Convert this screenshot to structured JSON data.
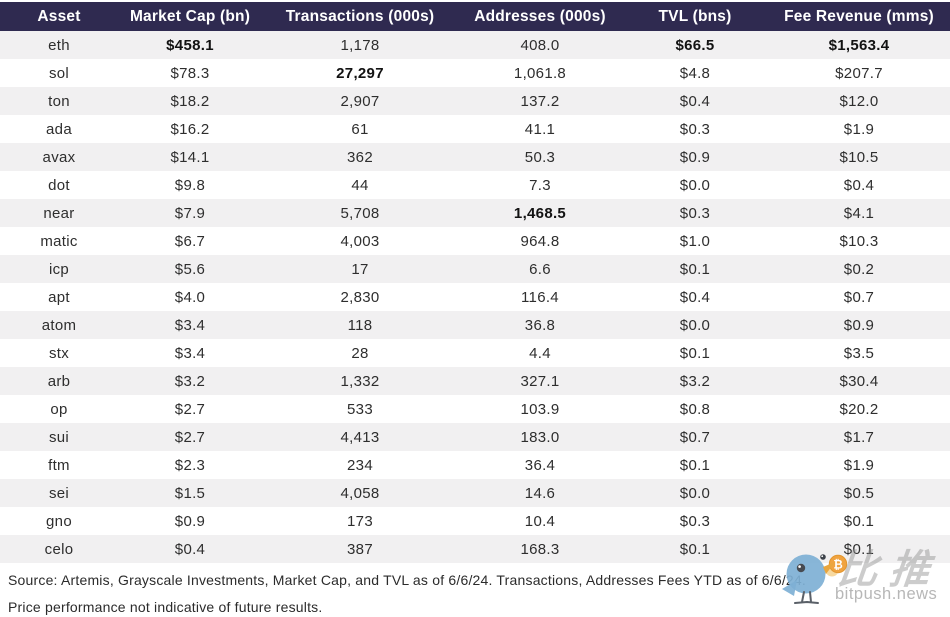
{
  "chart_data": {
    "type": "table",
    "title": "",
    "columns": [
      "Asset",
      "Market Cap (bn)",
      "Transactions (000s)",
      "Addresses (000s)",
      "TVL (bns)",
      "Fee Revenue (mms)"
    ],
    "rows": [
      {
        "cells": [
          "eth",
          "$458.1",
          "1,178",
          "408.0",
          "$66.5",
          "$1,563.4"
        ],
        "bold_cols": [
          1,
          4,
          5
        ]
      },
      {
        "cells": [
          "sol",
          "$78.3",
          "27,297",
          "1,061.8",
          "$4.8",
          "$207.7"
        ],
        "bold_cols": [
          2
        ]
      },
      {
        "cells": [
          "ton",
          "$18.2",
          "2,907",
          "137.2",
          "$0.4",
          "$12.0"
        ],
        "bold_cols": []
      },
      {
        "cells": [
          "ada",
          "$16.2",
          "61",
          "41.1",
          "$0.3",
          "$1.9"
        ],
        "bold_cols": []
      },
      {
        "cells": [
          "avax",
          "$14.1",
          "362",
          "50.3",
          "$0.9",
          "$10.5"
        ],
        "bold_cols": []
      },
      {
        "cells": [
          "dot",
          "$9.8",
          "44",
          "7.3",
          "$0.0",
          "$0.4"
        ],
        "bold_cols": []
      },
      {
        "cells": [
          "near",
          "$7.9",
          "5,708",
          "1,468.5",
          "$0.3",
          "$4.1"
        ],
        "bold_cols": [
          3
        ]
      },
      {
        "cells": [
          "matic",
          "$6.7",
          "4,003",
          "964.8",
          "$1.0",
          "$10.3"
        ],
        "bold_cols": []
      },
      {
        "cells": [
          "icp",
          "$5.6",
          "17",
          "6.6",
          "$0.1",
          "$0.2"
        ],
        "bold_cols": []
      },
      {
        "cells": [
          "apt",
          "$4.0",
          "2,830",
          "116.4",
          "$0.4",
          "$0.7"
        ],
        "bold_cols": []
      },
      {
        "cells": [
          "atom",
          "$3.4",
          "118",
          "36.8",
          "$0.0",
          "$0.9"
        ],
        "bold_cols": []
      },
      {
        "cells": [
          "stx",
          "$3.4",
          "28",
          "4.4",
          "$0.1",
          "$3.5"
        ],
        "bold_cols": []
      },
      {
        "cells": [
          "arb",
          "$3.2",
          "1,332",
          "327.1",
          "$3.2",
          "$30.4"
        ],
        "bold_cols": []
      },
      {
        "cells": [
          "op",
          "$2.7",
          "533",
          "103.9",
          "$0.8",
          "$20.2"
        ],
        "bold_cols": []
      },
      {
        "cells": [
          "sui",
          "$2.7",
          "4,413",
          "183.0",
          "$0.7",
          "$1.7"
        ],
        "bold_cols": []
      },
      {
        "cells": [
          "ftm",
          "$2.3",
          "234",
          "36.4",
          "$0.1",
          "$1.9"
        ],
        "bold_cols": []
      },
      {
        "cells": [
          "sei",
          "$1.5",
          "4,058",
          "14.6",
          "$0.0",
          "$0.5"
        ],
        "bold_cols": []
      },
      {
        "cells": [
          "gno",
          "$0.9",
          "173",
          "10.4",
          "$0.3",
          "$0.1"
        ],
        "bold_cols": []
      },
      {
        "cells": [
          "celo",
          "$0.4",
          "387",
          "168.3",
          "$0.1",
          "$0.1"
        ],
        "bold_cols": []
      }
    ]
  },
  "footer": {
    "line1": "Source: Artemis, Grayscale Investments, Market Cap, and TVL as of 6/6/24. Transactions, Addresses Fees YTD as of 6/6/24.",
    "line2": "Price performance not indicative of future results."
  },
  "watermark": {
    "cjk_text": "比推",
    "site_text": "bitpush.news",
    "coin_symbol": "₿"
  },
  "colors": {
    "header_bg": "#2f2a50",
    "header_text": "#ffffff",
    "row_alt_bg": "#f1f0f1",
    "body_text": "#2e2e2e",
    "bold_text": "#121212",
    "watermark_gray": "#b7b7b7",
    "bird_blue": "#7eb0d5",
    "coin_orange": "#f0a340"
  }
}
